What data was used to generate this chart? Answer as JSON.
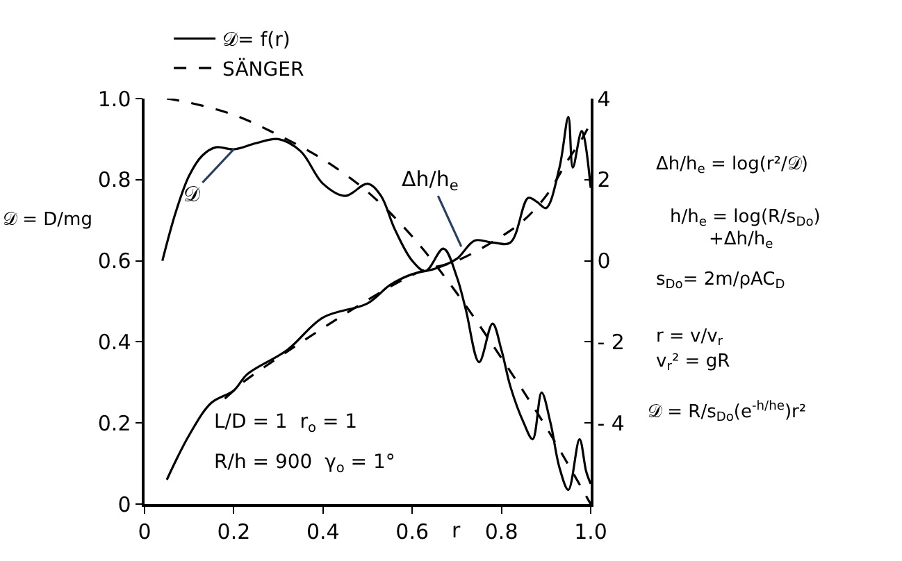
{
  "chart_data": {
    "type": "line",
    "xlabel": "r",
    "ylabel": "𝒟 = D/mg",
    "series": [
      {
        "name": "𝒟= f(r)",
        "color": "#000000",
        "line_style": "solid",
        "x": [
          0.04,
          0.07,
          0.1,
          0.13,
          0.16,
          0.2,
          0.25,
          0.3,
          0.35,
          0.4,
          0.45,
          0.5,
          0.53,
          0.56,
          0.6,
          0.63,
          0.67,
          0.7,
          0.72,
          0.75,
          0.78,
          0.8,
          0.82,
          0.85,
          0.87,
          0.89,
          0.91,
          0.93,
          0.95,
          0.975,
          0.99,
          1.0
        ],
        "values": [
          0.6,
          0.72,
          0.81,
          0.86,
          0.88,
          0.875,
          0.89,
          0.9,
          0.87,
          0.79,
          0.76,
          0.79,
          0.76,
          0.68,
          0.6,
          0.575,
          0.63,
          0.56,
          0.48,
          0.35,
          0.445,
          0.38,
          0.29,
          0.2,
          0.16,
          0.275,
          0.2,
          0.09,
          0.035,
          0.16,
          0.08,
          0.05
        ]
      },
      {
        "color": "#000000",
        "line_style": "solid",
        "axis": "y2",
        "x": [
          0.05,
          0.1,
          0.15,
          0.2,
          0.23,
          0.32,
          0.4,
          0.5,
          0.55,
          0.6,
          0.65,
          0.7,
          0.74,
          0.78,
          0.82,
          0.86,
          0.88,
          0.9,
          0.93,
          0.95,
          0.96,
          0.98,
          1.0
        ],
        "values": [
          -5.4,
          -4.3,
          -3.5,
          -3.2,
          -2.8,
          -2.2,
          -1.4,
          -1.05,
          -0.6,
          -0.33,
          -0.2,
          0.05,
          0.5,
          0.45,
          0.45,
          1.55,
          1.45,
          1.3,
          2.3,
          3.55,
          2.3,
          3.2,
          1.8
        ]
      },
      {
        "name": "SÄNGER",
        "color": "#000000",
        "line_style": "dashed",
        "x": [
          0.05,
          0.1,
          0.2,
          0.3,
          0.4,
          0.5,
          0.6,
          0.7,
          0.8,
          0.9,
          1.0
        ],
        "values": [
          1.0,
          0.99,
          0.96,
          0.91,
          0.85,
          0.77,
          0.66,
          0.52,
          0.36,
          0.19,
          0.0
        ]
      },
      {
        "color": "#000000",
        "line_style": "dashed",
        "axis": "y2",
        "x": [
          0.18,
          0.2,
          0.22,
          0.6,
          0.7,
          0.8,
          0.85,
          0.9,
          0.95,
          0.98,
          1.0
        ],
        "values": [
          -3.4,
          -3.2,
          -3.0,
          -0.35,
          0.0,
          0.6,
          1.0,
          1.6,
          2.5,
          3.0,
          3.4
        ]
      }
    ],
    "xlim": [
      0,
      1.0
    ],
    "xticks": [
      0,
      0.2,
      0.4,
      0.6,
      0.8,
      {
        "value": 1.0,
        "label": "1.0"
      }
    ],
    "ylim": [
      0,
      1.0
    ],
    "yticks": [
      0,
      0.2,
      0.4,
      0.6,
      0.8,
      {
        "value": 1.0,
        "label": "1.0"
      }
    ],
    "y2lim": [
      -6,
      4
    ],
    "y2ticks": [
      {
        "value": -4,
        "label": "- 4"
      },
      {
        "value": -2,
        "label": "- 2"
      },
      0,
      2,
      4
    ],
    "legend": "top",
    "marker": "none",
    "annotations": [
      {
        "text": "𝒟",
        "x": 0.2,
        "y": 0.875
      },
      {
        "text": "Δh/h$_{e}$",
        "x": 0.71,
        "y": 0.635
      },
      "Δh/h$_{e}$ = log(r²/𝒟)",
      "h/h$_{e}$ = log(R/s$_{Do}$)",
      "+Δh/h$_{e}$",
      "s$_{Do}$= 2m/ρAC$_{D}$",
      "r = v/v$_{r}$",
      "v$_{r}$² = gR",
      "𝒟 = R/s$_{Do}$(e$^{-h/he}$)r²",
      "L/D = 1  r$_{o}$ = 1",
      "R/h = 900  γ$_{o}$ = 1°"
    ]
  }
}
